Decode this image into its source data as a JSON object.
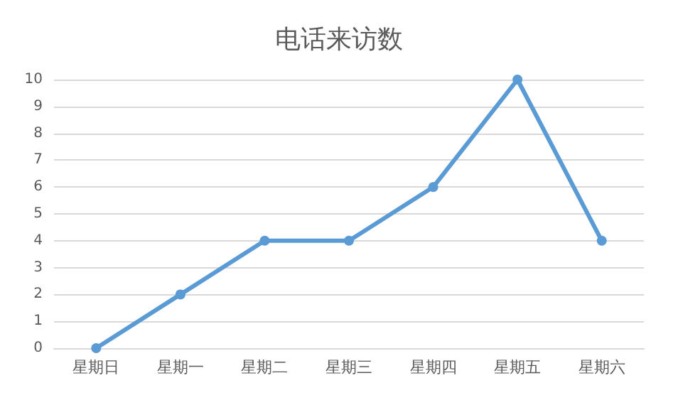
{
  "chart_data": {
    "type": "line",
    "title": "电话来访数",
    "categories": [
      "星期日",
      "星期一",
      "星期二",
      "星期三",
      "星期四",
      "星期五",
      "星期六"
    ],
    "series": [
      {
        "color": "#5b9bd5",
        "values": [
          0,
          2,
          4,
          4,
          6,
          10,
          4
        ]
      }
    ],
    "ylim": [
      0,
      10
    ],
    "yticks": [
      0,
      1,
      2,
      3,
      4,
      5,
      6,
      7,
      8,
      9,
      10
    ],
    "grid": "y",
    "marker": "circle",
    "line_style": "solid"
  }
}
